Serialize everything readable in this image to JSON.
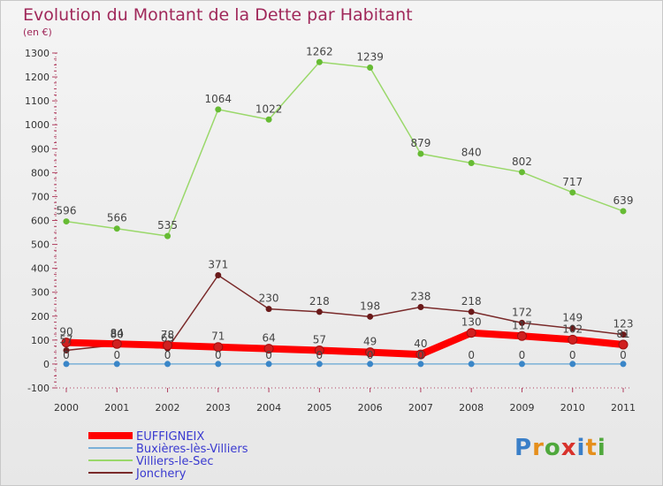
{
  "title": "Evolution du Montant de la Dette par Habitant",
  "unit": "(en €)",
  "logo": {
    "text": "Proxiti",
    "colors": [
      "#3a7fc8",
      "#e58f1c",
      "#4fa83c",
      "#d8322c",
      "#3a7fc8",
      "#e58f1c",
      "#4fa83c"
    ]
  },
  "chart_data": {
    "type": "line",
    "title": "Evolution du Montant de la Dette par Habitant",
    "ylabel": "(en €)",
    "xlabel": "",
    "x": [
      "2000",
      "2001",
      "2002",
      "2003",
      "2004",
      "2005",
      "2006",
      "2007",
      "2008",
      "2009",
      "2010",
      "2011"
    ],
    "ylim": [
      -100,
      1300
    ],
    "yticks": [
      -100,
      0,
      100,
      200,
      300,
      400,
      500,
      600,
      700,
      800,
      900,
      1000,
      1100,
      1200,
      1300
    ],
    "grid": false,
    "legend": "bottom-left",
    "series": [
      {
        "name": "EUFFIGNEIX",
        "color": "#ff0000",
        "marker": "#d02020",
        "width": 8,
        "values": [
          90,
          84,
          78,
          71,
          64,
          57,
          49,
          40,
          130,
          117,
          102,
          81
        ],
        "labels": [
          "90",
          "84",
          "78",
          "71",
          "64",
          "57",
          "49",
          "40",
          "130",
          "117",
          "102",
          "81"
        ]
      },
      {
        "name": "Buxières-lès-Villiers",
        "color": "#7ab0d8",
        "marker": "#3a86c8",
        "width": 1.5,
        "values": [
          0,
          0,
          0,
          0,
          0,
          0,
          0,
          0,
          0,
          0,
          0,
          0
        ],
        "labels": [
          "0",
          "0",
          "0",
          "0",
          "0",
          "0",
          "0",
          "0",
          "0",
          "0",
          "0",
          "0"
        ]
      },
      {
        "name": "Villiers-le-Sec",
        "color": "#9ad86a",
        "marker": "#66bb33",
        "width": 1.5,
        "values": [
          596,
          566,
          535,
          1064,
          1022,
          1262,
          1239,
          879,
          840,
          802,
          717,
          639
        ],
        "labels": [
          "596",
          "566",
          "535",
          "1064",
          "1022",
          "1262",
          "1239",
          "879",
          "840",
          "802",
          "717",
          "639"
        ]
      },
      {
        "name": "Jonchery",
        "color": "#7a2a2a",
        "marker": "#6a1a1a",
        "width": 1.5,
        "values": [
          57,
          80,
          65,
          371,
          230,
          218,
          198,
          238,
          218,
          172,
          149,
          123
        ],
        "labels": [
          "57",
          "80",
          "65",
          "371",
          "230",
          "218",
          "198",
          "238",
          "218",
          "172",
          "149",
          "123"
        ]
      }
    ]
  }
}
